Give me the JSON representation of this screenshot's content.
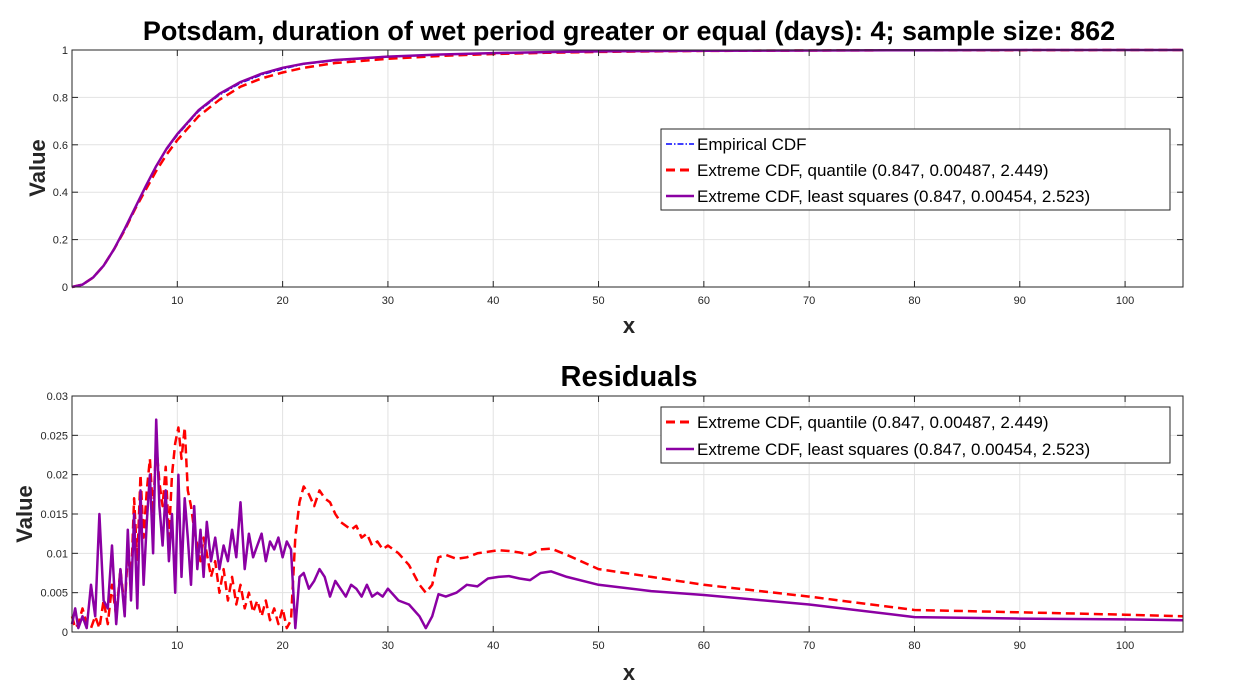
{
  "chart_data": [
    {
      "type": "line",
      "title": "Potsdam, duration of wet period greater or equal (days): 4; sample size: 862",
      "xlabel": "x",
      "ylabel": "Value",
      "xlim": [
        0,
        105.5
      ],
      "ylim": [
        0,
        1
      ],
      "xticks": [
        10,
        20,
        30,
        40,
        50,
        60,
        70,
        80,
        90,
        100
      ],
      "yticks": [
        0,
        0.2,
        0.4,
        0.6,
        0.8,
        1
      ],
      "ytick_labels": [
        "0",
        "0.2",
        "0.4",
        "0.6",
        "0.8",
        "1"
      ],
      "grid": true,
      "legend_position": "right-middle",
      "series": [
        {
          "name": "Empirical CDF",
          "color": "#0000ff",
          "style": "dashdot",
          "x": [
            0,
            1,
            2,
            3,
            4,
            5,
            6,
            7,
            8,
            9,
            10,
            12,
            14,
            16,
            18,
            20,
            22,
            25,
            30,
            35,
            40,
            45,
            50,
            60,
            70,
            80,
            90,
            100,
            105.5
          ],
          "y": [
            0,
            0.01,
            0.04,
            0.09,
            0.16,
            0.24,
            0.33,
            0.42,
            0.51,
            0.58,
            0.64,
            0.74,
            0.81,
            0.86,
            0.895,
            0.92,
            0.94,
            0.955,
            0.97,
            0.98,
            0.987,
            0.991,
            0.994,
            0.997,
            0.998,
            0.999,
            1.0,
            1.0,
            1.0
          ]
        },
        {
          "name": "Extreme CDF, quantile (0.847, 0.00487, 2.449)",
          "color": "#ff0000",
          "style": "dashed",
          "x": [
            0,
            1,
            2,
            3,
            4,
            5,
            6,
            7,
            8,
            9,
            10,
            12,
            14,
            16,
            18,
            20,
            22,
            25,
            30,
            35,
            40,
            45,
            50,
            60,
            70,
            80,
            90,
            100,
            105.5
          ],
          "y": [
            0,
            0.01,
            0.04,
            0.09,
            0.16,
            0.24,
            0.33,
            0.41,
            0.49,
            0.56,
            0.62,
            0.72,
            0.79,
            0.845,
            0.88,
            0.905,
            0.925,
            0.945,
            0.963,
            0.975,
            0.983,
            0.988,
            0.992,
            0.996,
            0.998,
            0.999,
            0.999,
            1.0,
            1.0
          ]
        },
        {
          "name": "Extreme CDF, least squares (0.847, 0.00454, 2.523)",
          "color": "#8b00a3",
          "style": "solid",
          "x": [
            0,
            1,
            2,
            3,
            4,
            5,
            6,
            7,
            8,
            9,
            10,
            12,
            14,
            16,
            18,
            20,
            22,
            25,
            30,
            35,
            40,
            45,
            50,
            60,
            70,
            80,
            90,
            100,
            105.5
          ],
          "y": [
            0,
            0.01,
            0.04,
            0.09,
            0.16,
            0.245,
            0.335,
            0.425,
            0.51,
            0.585,
            0.645,
            0.745,
            0.815,
            0.865,
            0.9,
            0.925,
            0.942,
            0.958,
            0.972,
            0.981,
            0.987,
            0.991,
            0.994,
            0.997,
            0.998,
            0.999,
            1.0,
            1.0,
            1.0
          ]
        }
      ]
    },
    {
      "type": "line",
      "title": "Residuals",
      "xlabel": "x",
      "ylabel": "Value",
      "xlim": [
        0,
        105.5
      ],
      "ylim": [
        0,
        0.03
      ],
      "xticks": [
        10,
        20,
        30,
        40,
        50,
        60,
        70,
        80,
        90,
        100
      ],
      "yticks": [
        0,
        0.005,
        0.01,
        0.015,
        0.02,
        0.025,
        0.03
      ],
      "ytick_labels": [
        "0",
        "0.005",
        "0.01",
        "0.015",
        "0.02",
        "0.025",
        "0.03"
      ],
      "grid": true,
      "legend_position": "top-right",
      "series": [
        {
          "name": "Extreme CDF, quantile (0.847, 0.00487, 2.449)",
          "color": "#ff0000",
          "style": "dashed",
          "x": [
            0,
            0.3,
            0.6,
            1,
            1.4,
            1.8,
            2.2,
            2.6,
            3,
            3.4,
            3.8,
            4.2,
            4.6,
            5,
            5.3,
            5.6,
            5.9,
            6.2,
            6.5,
            6.8,
            7.1,
            7.4,
            7.7,
            8,
            8.3,
            8.6,
            8.9,
            9.2,
            9.5,
            9.8,
            10.1,
            10.4,
            10.7,
            11,
            11.3,
            11.6,
            11.9,
            12.2,
            12.5,
            12.8,
            13.2,
            13.6,
            14,
            14.4,
            14.8,
            15.2,
            15.6,
            16,
            16.4,
            16.8,
            17.2,
            17.6,
            18,
            18.4,
            18.8,
            19.2,
            19.6,
            20,
            20.4,
            20.8,
            21.2,
            21.6,
            22,
            22.5,
            23,
            23.5,
            24,
            24.5,
            25,
            25.5,
            26,
            26.5,
            27,
            27.5,
            28,
            28.5,
            29,
            29.5,
            30,
            31,
            32,
            33,
            33.6,
            34.2,
            34.8,
            35.5,
            36.5,
            37.5,
            38.5,
            39.5,
            40.5,
            41.5,
            42.5,
            43.5,
            44.5,
            45.5,
            47,
            50,
            55,
            60,
            70,
            80,
            90,
            100,
            105.5
          ],
          "y": [
            0.002,
            0.0005,
            0.001,
            0.003,
            0.001,
            0.0005,
            0.002,
            0.0005,
            0.004,
            0.001,
            0.006,
            0.002,
            0.008,
            0.003,
            0.01,
            0.006,
            0.017,
            0.009,
            0.02,
            0.012,
            0.018,
            0.022,
            0.015,
            0.024,
            0.019,
            0.016,
            0.021,
            0.012,
            0.02,
            0.024,
            0.026,
            0.022,
            0.026,
            0.018,
            0.016,
            0.013,
            0.011,
            0.009,
            0.012,
            0.01,
            0.007,
            0.009,
            0.005,
            0.008,
            0.004,
            0.007,
            0.0035,
            0.006,
            0.003,
            0.005,
            0.0025,
            0.004,
            0.002,
            0.004,
            0.0015,
            0.003,
            0.001,
            0.003,
            0.0005,
            0.0015,
            0.012,
            0.0165,
            0.0185,
            0.0175,
            0.016,
            0.018,
            0.017,
            0.0165,
            0.015,
            0.014,
            0.0135,
            0.013,
            0.0135,
            0.012,
            0.0125,
            0.011,
            0.0115,
            0.0105,
            0.011,
            0.01,
            0.0085,
            0.006,
            0.005,
            0.006,
            0.0095,
            0.0098,
            0.0093,
            0.0095,
            0.01,
            0.0102,
            0.0104,
            0.0103,
            0.0101,
            0.0098,
            0.0105,
            0.0106,
            0.0098,
            0.008,
            0.007,
            0.006,
            0.0045,
            0.0028,
            0.0025,
            0.0022,
            0.002
          ]
        },
        {
          "name": "Extreme CDF, least squares (0.847, 0.00454, 2.523)",
          "color": "#8b00a3",
          "style": "solid",
          "x": [
            0,
            0.3,
            0.6,
            1,
            1.4,
            1.8,
            2.2,
            2.6,
            3,
            3.4,
            3.8,
            4.2,
            4.6,
            5,
            5.3,
            5.6,
            5.9,
            6.2,
            6.5,
            6.8,
            7.1,
            7.4,
            7.7,
            8,
            8.3,
            8.6,
            8.9,
            9.2,
            9.5,
            9.8,
            10.1,
            10.4,
            10.7,
            11,
            11.3,
            11.6,
            11.9,
            12.2,
            12.5,
            12.8,
            13.2,
            13.6,
            14,
            14.4,
            14.8,
            15.2,
            15.6,
            16,
            16.4,
            16.8,
            17.2,
            17.6,
            18,
            18.4,
            18.8,
            19.2,
            19.6,
            20,
            20.4,
            20.8,
            21.2,
            21.6,
            22,
            22.5,
            23,
            23.5,
            24,
            24.5,
            25,
            25.5,
            26,
            26.5,
            27,
            27.5,
            28,
            28.5,
            29,
            29.5,
            30,
            31,
            32,
            33,
            33.6,
            34.2,
            34.8,
            35.5,
            36.5,
            37.5,
            38.5,
            39.5,
            40.5,
            41.5,
            42.5,
            43.5,
            44.5,
            45.5,
            47,
            50,
            55,
            60,
            70,
            80,
            90,
            100,
            105.5
          ],
          "y": [
            0.001,
            0.003,
            0.0005,
            0.002,
            0.0005,
            0.006,
            0.002,
            0.015,
            0.004,
            0.003,
            0.011,
            0.001,
            0.008,
            0.002,
            0.013,
            0.004,
            0.015,
            0.003,
            0.018,
            0.006,
            0.014,
            0.02,
            0.01,
            0.027,
            0.016,
            0.011,
            0.018,
            0.009,
            0.015,
            0.005,
            0.02,
            0.007,
            0.017,
            0.012,
            0.006,
            0.016,
            0.008,
            0.013,
            0.007,
            0.014,
            0.009,
            0.012,
            0.008,
            0.011,
            0.009,
            0.013,
            0.0095,
            0.0165,
            0.008,
            0.0125,
            0.0095,
            0.011,
            0.0125,
            0.009,
            0.0115,
            0.0105,
            0.012,
            0.0095,
            0.0115,
            0.0105,
            0.0005,
            0.007,
            0.0075,
            0.0055,
            0.0065,
            0.008,
            0.007,
            0.0045,
            0.0065,
            0.0055,
            0.0045,
            0.006,
            0.0055,
            0.0045,
            0.006,
            0.0045,
            0.005,
            0.0045,
            0.0055,
            0.004,
            0.0035,
            0.002,
            0.0005,
            0.002,
            0.0048,
            0.0045,
            0.005,
            0.006,
            0.0058,
            0.0068,
            0.007,
            0.0071,
            0.0068,
            0.0066,
            0.0075,
            0.0077,
            0.007,
            0.006,
            0.0052,
            0.0047,
            0.0035,
            0.0019,
            0.0017,
            0.0016,
            0.0015
          ]
        }
      ]
    }
  ]
}
